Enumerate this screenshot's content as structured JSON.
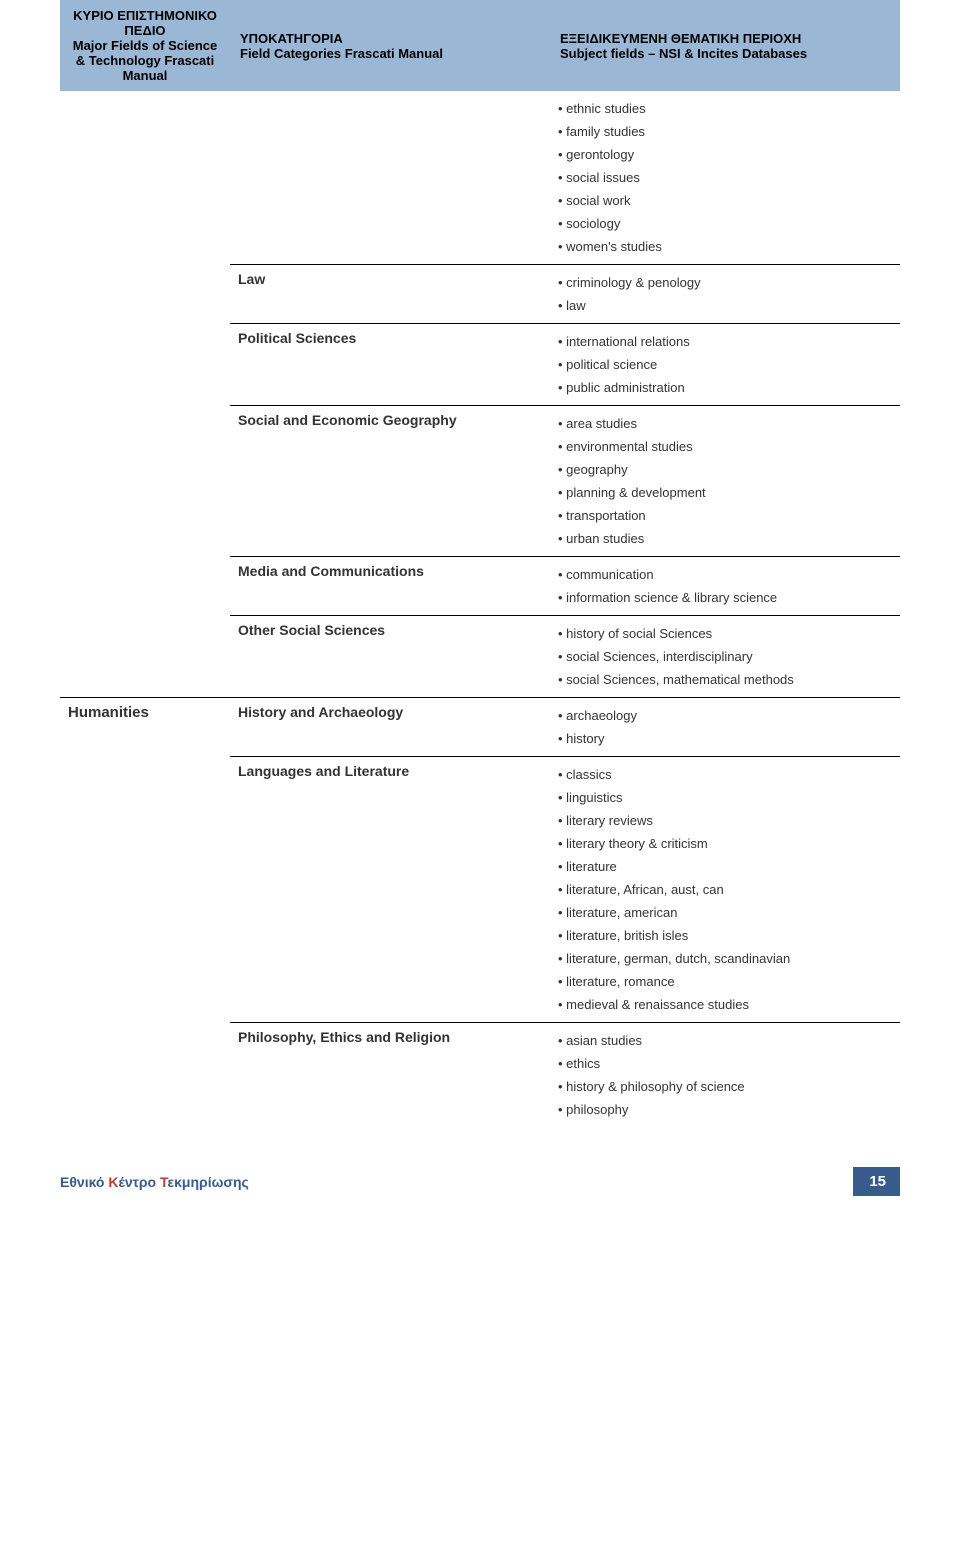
{
  "header": {
    "col1_gr": "ΚΥΡΙΟ ΕΠΙΣΤΗΜΟΝΙΚΟ ΠΕΔΙΟ",
    "col1_en": "Major Fields of Science & Technology Frascati Manual",
    "col2_gr": "ΥΠΟΚΑΤΗΓΟΡΙΑ",
    "col2_en": "Field Categories Frascati Manual",
    "col3_gr": "ΕΞΕΙΔΙΚΕΥΜΕΝΗ ΘΕΜΑΤΙΚΗ ΠΕΡΙΟΧΗ",
    "col3_en": "Subject fields – NSI & Incites Databases"
  },
  "rows": [
    {
      "major": "",
      "category": "",
      "subjects": [
        "ethnic studies",
        "family studies",
        "gerontology",
        "social issues",
        "social work",
        "sociology",
        "women's studies"
      ],
      "catBorder": false,
      "majorBorder": false,
      "subjBorder": false
    },
    {
      "major": "",
      "category": "Law",
      "subjects": [
        "criminology & penology",
        "law"
      ],
      "catBorder": true,
      "majorBorder": false,
      "subjBorder": true
    },
    {
      "major": "",
      "category": "Political Sciences",
      "subjects": [
        "international relations",
        "political science",
        "public administration"
      ],
      "catBorder": true,
      "majorBorder": false,
      "subjBorder": true
    },
    {
      "major": "",
      "category": "Social and Economic Geography",
      "subjects": [
        "area studies",
        "environmental studies",
        "geography",
        "planning & development",
        "transportation",
        "urban studies"
      ],
      "catBorder": true,
      "majorBorder": false,
      "subjBorder": true
    },
    {
      "major": "",
      "category": "Media and Communications",
      "subjects": [
        "communication",
        "information science & library science"
      ],
      "catBorder": true,
      "majorBorder": false,
      "subjBorder": true
    },
    {
      "major": "",
      "category": "Other Social Sciences",
      "subjects": [
        "history of social Sciences",
        "social Sciences, interdisciplinary",
        "social Sciences, mathematical methods"
      ],
      "catBorder": true,
      "majorBorder": false,
      "subjBorder": true
    },
    {
      "major": "Humanities",
      "category": "History and Archaeology",
      "subjects": [
        "archaeology",
        "history"
      ],
      "catBorder": true,
      "majorBorder": true,
      "subjBorder": true
    },
    {
      "major": "",
      "category": "Languages and Literature",
      "subjects": [
        "classics",
        "linguistics",
        "literary reviews",
        "literary theory & criticism",
        "literature",
        "literature, African, aust, can",
        "literature, american",
        "literature, british isles",
        "literature, german, dutch, scandinavian",
        "literature, romance",
        "medieval & renaissance studies"
      ],
      "catBorder": true,
      "majorBorder": false,
      "subjBorder": true
    },
    {
      "major": "",
      "category": "Philosophy, Ethics and Religion",
      "subjects": [
        "asian studies",
        "ethics",
        "history & philosophy of science",
        "philosophy"
      ],
      "catBorder": true,
      "majorBorder": false,
      "subjBorder": true
    }
  ],
  "footer": {
    "left_pre": "Εθνικό ",
    "left_k1": "Κ",
    "left_mid1": "έντρο ",
    "left_k2": "Τ",
    "left_mid2": "εκμηρίωσης",
    "page": "15"
  }
}
